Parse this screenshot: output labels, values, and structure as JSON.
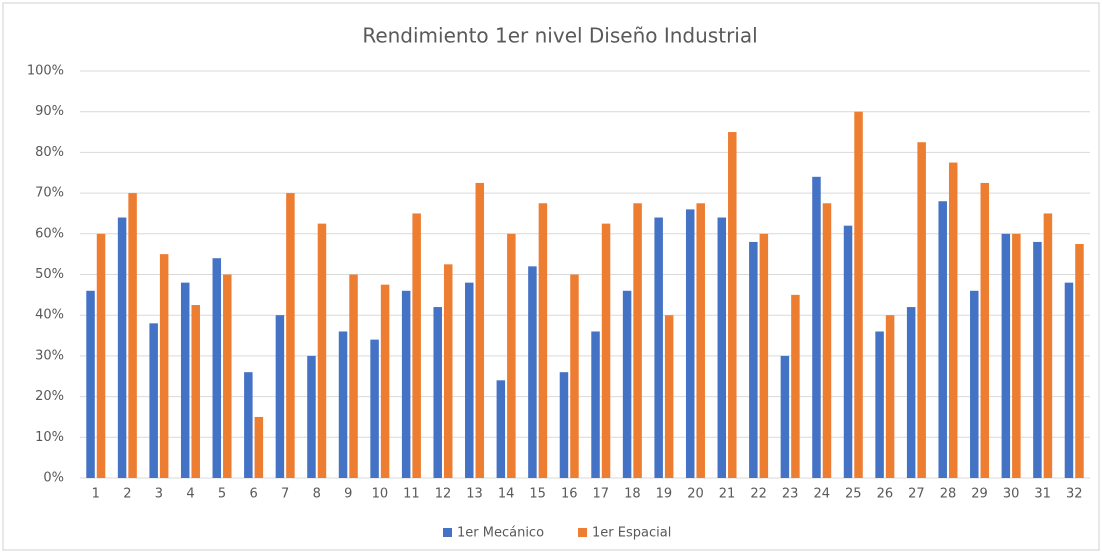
{
  "chart_data": {
    "type": "bar",
    "title": "Rendimiento 1er nivel Diseño Industrial",
    "categories": [
      "1",
      "2",
      "3",
      "4",
      "5",
      "6",
      "7",
      "8",
      "9",
      "10",
      "11",
      "12",
      "13",
      "14",
      "15",
      "16",
      "17",
      "18",
      "19",
      "20",
      "21",
      "22",
      "23",
      "24",
      "25",
      "26",
      "27",
      "28",
      "29",
      "30",
      "31",
      "32"
    ],
    "series": [
      {
        "name": "1er Mecánico",
        "color": "#4472c4",
        "values": [
          46,
          64,
          38,
          48,
          54,
          26,
          40,
          30,
          36,
          34,
          46,
          42,
          48,
          24,
          52,
          26,
          36,
          46,
          64,
          66,
          64,
          58,
          30,
          74,
          62,
          36,
          42,
          68,
          46,
          60,
          58,
          48
        ]
      },
      {
        "name": "1er Espacial",
        "color": "#ed7d31",
        "values": [
          60,
          70,
          55,
          42.5,
          50,
          15,
          70,
          62.5,
          50,
          47.5,
          65,
          52.5,
          72.5,
          60,
          67.5,
          50,
          62.5,
          67.5,
          40,
          67.5,
          85,
          60,
          45,
          67.5,
          90,
          40,
          82.5,
          77.5,
          72.5,
          60,
          65,
          57.5
        ]
      }
    ],
    "ylim": [
      0,
      100
    ],
    "yticks": [
      {
        "value": 0,
        "label": "0%"
      },
      {
        "value": 10,
        "label": "10%"
      },
      {
        "value": 20,
        "label": "20%"
      },
      {
        "value": 30,
        "label": "30%"
      },
      {
        "value": 40,
        "label": "40%"
      },
      {
        "value": 50,
        "label": "50%"
      },
      {
        "value": 60,
        "label": "60%"
      },
      {
        "value": 70,
        "label": "70%"
      },
      {
        "value": 80,
        "label": "80%"
      },
      {
        "value": 90,
        "label": "90%"
      },
      {
        "value": 100,
        "label": "100%"
      }
    ],
    "grid": true,
    "legend": "bottom"
  }
}
